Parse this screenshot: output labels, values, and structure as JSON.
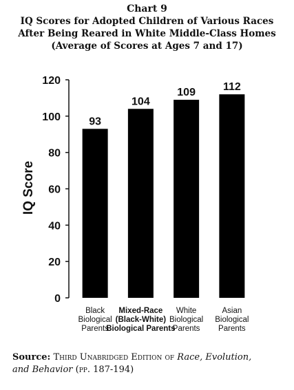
{
  "header": {
    "chart_number": "Chart 9",
    "title_line1": "IQ Scores for Adopted Children of Various Races",
    "title_line2": "After Being Reared in White Middle-Class Homes",
    "subtitle": "(Average of Scores at Ages 7 and 17)"
  },
  "chart_data": {
    "type": "bar",
    "title": "IQ Scores for Adopted Children of Various Races After Being Reared in White Middle-Class Homes",
    "subtitle": "(Average of Scores at Ages 7 and 17)",
    "ylabel": "IQ Score",
    "xlabel": "",
    "ylim": [
      0,
      120
    ],
    "yticks": [
      0,
      20,
      40,
      60,
      80,
      100,
      120
    ],
    "grid": false,
    "categories": [
      [
        "Black",
        "Biological",
        "Parents"
      ],
      [
        "Mixed-Race",
        "(Black-White)",
        "Biological Parents"
      ],
      [
        "White",
        "Biological",
        "Parents"
      ],
      [
        "Asian",
        "Biological",
        "Parents"
      ]
    ],
    "category_bold": [
      false,
      true,
      false,
      false
    ],
    "values": [
      93,
      104,
      109,
      112
    ],
    "bar_color": "#000000"
  },
  "source": {
    "label": "Source:",
    "text_smallcaps": "Third Unabridged Edition of",
    "book_title": "Race, Evolution,",
    "book_title_line2": "and Behavior",
    "pages": "(pp. 187-194)"
  }
}
